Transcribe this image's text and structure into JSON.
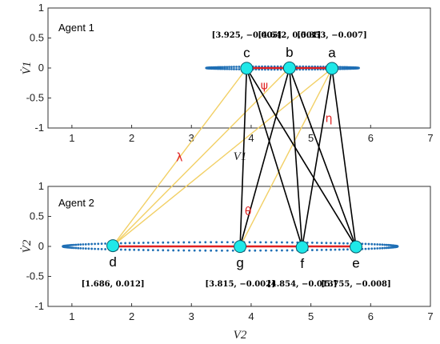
{
  "colors": {
    "blue_dots": "#1f6fb5",
    "red_line": "#e02020",
    "node_fill": "#1fe8e8",
    "node_stroke": "#0a5a6a",
    "yellow_links": "#f2d066",
    "black_links": "#000000",
    "greek_red": "#e02020"
  },
  "chart_data": [
    {
      "type": "scatter",
      "title": "Agent 1",
      "ylabel": "V̇1",
      "xlabel": "V1",
      "xlim": [
        0.6,
        7
      ],
      "ylim": [
        -1,
        1
      ],
      "xticks": [
        1,
        2,
        3,
        4,
        5,
        6,
        7
      ],
      "yticks": [
        1,
        0.5,
        0,
        -0.5,
        -1
      ],
      "ytick_labels": [
        "1",
        "0.5",
        "0",
        "-0.5",
        "-1"
      ],
      "trajectory": {
        "x_min": 3.25,
        "x_max": 5.8,
        "amplitude": 0.025
      },
      "segment": {
        "x1": 3.925,
        "x2": 5.353
      },
      "points": [
        {
          "id": "c",
          "label": "c",
          "x": 3.925,
          "y": -0.005,
          "coord": "[3.925, −0.005]"
        },
        {
          "id": "b",
          "label": "b",
          "x": 4.642,
          "y": 0.001,
          "coord": "[4.642, 0.001]"
        },
        {
          "id": "a",
          "label": "a",
          "x": 5.353,
          "y": -0.007,
          "coord": "[5.353, −0.007]"
        }
      ]
    },
    {
      "type": "scatter",
      "title": "Agent 2",
      "ylabel": "V̇2",
      "xlabel": "V2",
      "xlim": [
        0.6,
        7
      ],
      "ylim": [
        -1,
        1
      ],
      "xticks": [
        1,
        2,
        3,
        4,
        5,
        6,
        7
      ],
      "yticks": [
        1,
        0.5,
        0,
        -0.5,
        -1
      ],
      "ytick_labels": [
        "1",
        "0.5",
        "0",
        "-0.5",
        "-1"
      ],
      "trajectory": {
        "x_min": 0.85,
        "x_max": 6.45,
        "amplitude": 0.07
      },
      "segment": {
        "x1": 1.686,
        "x2": 5.755
      },
      "points": [
        {
          "id": "d",
          "label": "d",
          "x": 1.686,
          "y": 0.012,
          "coord": "[1.686, 0.012]"
        },
        {
          "id": "g",
          "label": "g",
          "x": 3.815,
          "y": -0.002,
          "coord": "[3.815, −0.002]"
        },
        {
          "id": "f",
          "label": "f",
          "x": 4.854,
          "y": -0.013,
          "coord": "[4.854, −0.013]"
        },
        {
          "id": "e",
          "label": "e",
          "x": 5.755,
          "y": -0.008,
          "coord": "[5.755, −0.008]"
        }
      ]
    }
  ],
  "links": [
    {
      "from": "c",
      "to": "g",
      "color": "black"
    },
    {
      "from": "c",
      "to": "f",
      "color": "black"
    },
    {
      "from": "c",
      "to": "e",
      "color": "black"
    },
    {
      "from": "b",
      "to": "g",
      "color": "black"
    },
    {
      "from": "b",
      "to": "f",
      "color": "black"
    },
    {
      "from": "b",
      "to": "e",
      "color": "black"
    },
    {
      "from": "a",
      "to": "f",
      "color": "black"
    },
    {
      "from": "a",
      "to": "e",
      "color": "black"
    },
    {
      "from": "a",
      "to": "d",
      "color": "yellow"
    },
    {
      "from": "a",
      "to": "g",
      "color": "yellow"
    },
    {
      "from": "b",
      "to": "d",
      "color": "yellow"
    },
    {
      "from": "c",
      "to": "d",
      "color": "yellow"
    }
  ],
  "annotations": [
    {
      "id": "psi",
      "text": "ψ",
      "data_x": 4.22,
      "data_y": -0.35
    },
    {
      "id": "eta",
      "text": "η",
      "data_x": 5.3,
      "data_y": -0.9
    },
    {
      "id": "lambda",
      "text": "λ",
      "data_x": 2.8,
      "data_y": -1.55
    },
    {
      "id": "theta",
      "text": "θ",
      "data_x": 3.95,
      "data_y": -2.45
    }
  ]
}
